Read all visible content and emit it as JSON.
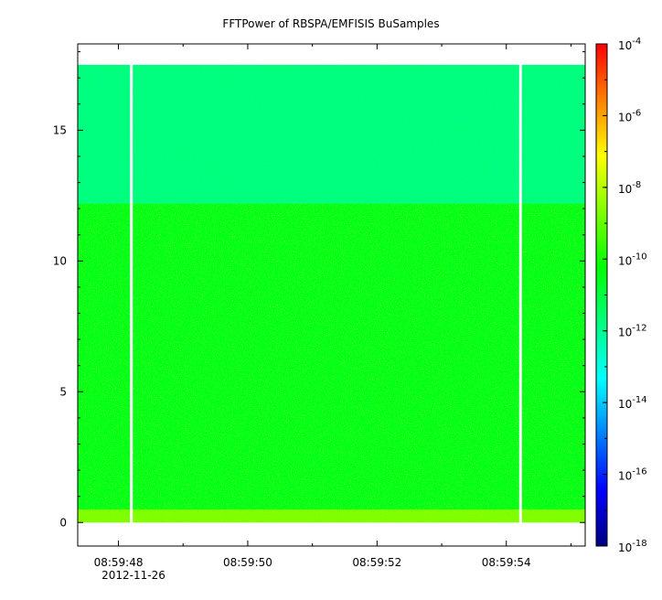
{
  "chart_data": {
    "type": "heatmap",
    "title": "FFTPower of RBSPA/EMFISIS  BuSamples",
    "xlabel": "",
    "ylabel": "",
    "date_label": "2012-11-26",
    "x_range": [
      "08:59:47.37",
      "08:59:55.22"
    ],
    "x_ticks": [
      {
        "value": "08:59:48",
        "label": "08:59:48"
      },
      {
        "value": "08:59:50",
        "label": "08:59:50"
      },
      {
        "value": "08:59:52",
        "label": "08:59:52"
      },
      {
        "value": "08:59:54",
        "label": "08:59:54"
      }
    ],
    "x_minor_tick_interval_s": 1,
    "y_range": [
      -0.9,
      18.3
    ],
    "y_ticks": [
      0,
      5,
      10,
      15
    ],
    "y_data_range": [
      0,
      17.5
    ],
    "colorbar": {
      "scale": "log",
      "range": [
        1e-18,
        0.0001
      ],
      "palette": [
        "#000080",
        "#0000ff",
        "#0080ff",
        "#00ffff",
        "#00ff80",
        "#00ff00",
        "#80ff00",
        "#ffff00",
        "#ff8000",
        "#ff0000"
      ],
      "ticks": [
        {
          "value": 0.0001,
          "base": "10",
          "exp": "-4"
        },
        {
          "value": 1e-06,
          "base": "10",
          "exp": "-6"
        },
        {
          "value": 1e-08,
          "base": "10",
          "exp": "-8"
        },
        {
          "value": 1e-10,
          "base": "10",
          "exp": "-10"
        },
        {
          "value": 1e-12,
          "base": "10",
          "exp": "-12"
        },
        {
          "value": 1e-14,
          "base": "10",
          "exp": "-14"
        },
        {
          "value": 1e-16,
          "base": "10",
          "exp": "-16"
        },
        {
          "value": 1e-18,
          "base": "10",
          "exp": "-18"
        }
      ]
    },
    "bands": [
      {
        "y_from": 0,
        "y_to": 0.5,
        "power": 2e-09
      },
      {
        "y_from": 0.5,
        "y_to": 12.2,
        "power": 3e-11
      },
      {
        "y_from": 12.2,
        "y_to": 17.5,
        "power": 2e-12
      }
    ],
    "data_gaps": [
      {
        "time": "08:59:48.20"
      },
      {
        "time": "08:59:54.22"
      }
    ]
  }
}
